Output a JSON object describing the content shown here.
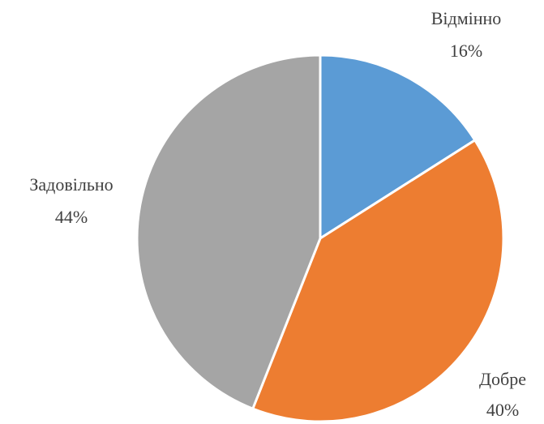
{
  "chart_data": {
    "type": "pie",
    "categories": [
      "Відмінно",
      "Добре",
      "Задовільно"
    ],
    "values": [
      16,
      40,
      44
    ],
    "value_labels": [
      "16%",
      "40%",
      "44%"
    ],
    "colors": [
      "#5b9bd5",
      "#ed7d31",
      "#a5a5a5"
    ]
  }
}
